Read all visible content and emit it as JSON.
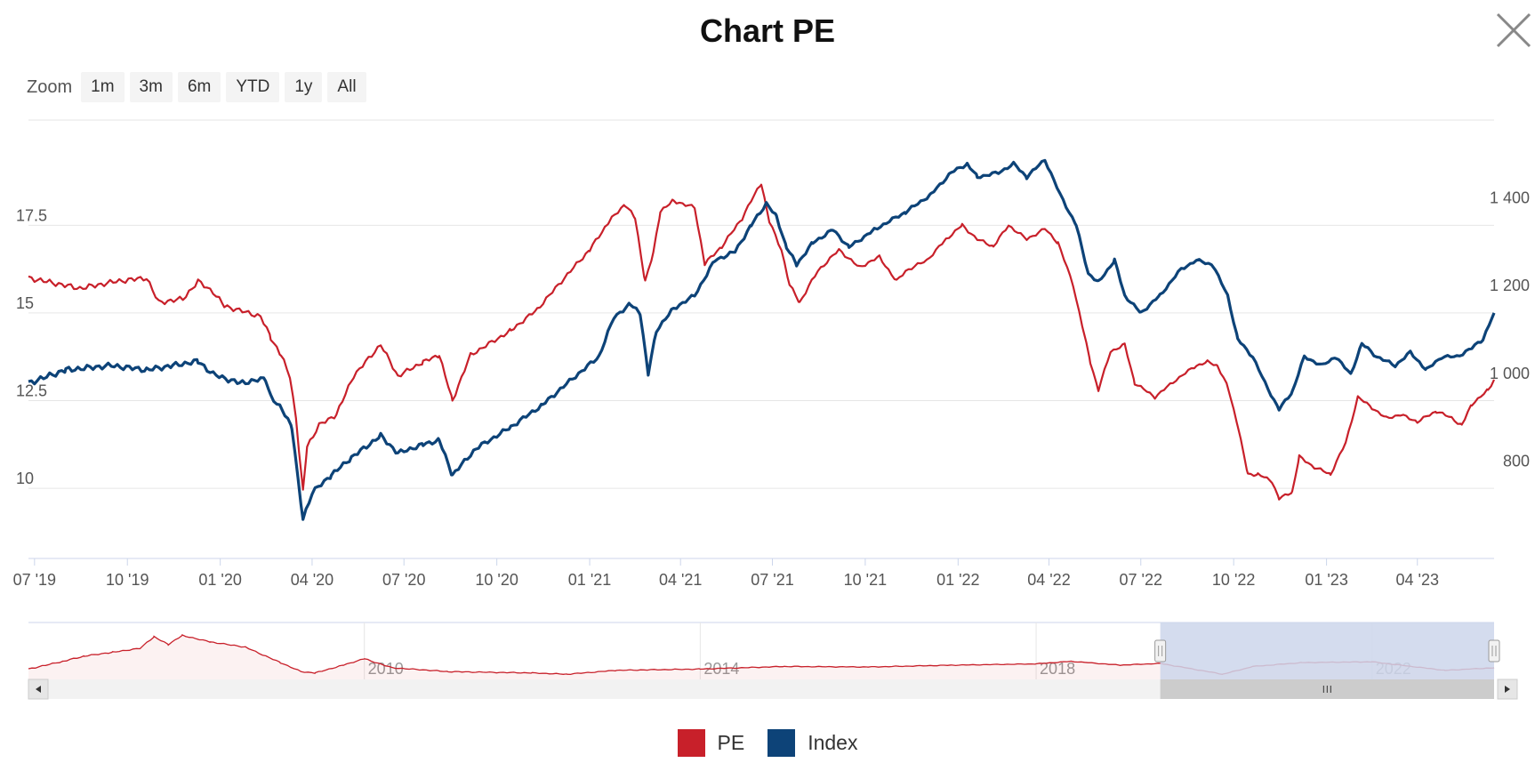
{
  "title": "Chart PE",
  "close_icon": "close-x-icon",
  "zoom": {
    "label": "Zoom",
    "buttons": [
      "1m",
      "3m",
      "6m",
      "YTD",
      "1y",
      "All"
    ]
  },
  "colors": {
    "pe": "#c8202a",
    "index": "#0d4378",
    "grid": "#e6e6e6",
    "navigator_mask": "#ccd6eb"
  },
  "chart_data": {
    "type": "line",
    "x_ticks": [
      "07 '19",
      "10 '19",
      "01 '20",
      "04 '20",
      "07 '20",
      "10 '20",
      "01 '21",
      "04 '21",
      "07 '21",
      "10 '21",
      "01 '22",
      "04 '22",
      "07 '22",
      "10 '22",
      "01 '23",
      "04 '23"
    ],
    "x_range": [
      "2019-06-25",
      "2023-06-16"
    ],
    "y_left": {
      "ticks": [
        "10",
        "12.5",
        "15",
        "17.5"
      ],
      "range": [
        8,
        20.5
      ]
    },
    "y_right": {
      "ticks": [
        "800",
        "1 000",
        "1 200",
        "1 400"
      ],
      "range": [
        600,
        1600
      ]
    },
    "grid": true,
    "legend_placement": "bottom-center",
    "series": [
      {
        "name": "PE",
        "axis": "left",
        "points": [
          [
            "2019-06-25",
            16.0
          ],
          [
            "2019-08-15",
            15.7
          ],
          [
            "2019-09-20",
            15.9
          ],
          [
            "2019-10-20",
            16.0
          ],
          [
            "2019-11-01",
            15.3
          ],
          [
            "2019-11-25",
            15.4
          ],
          [
            "2019-12-10",
            15.9
          ],
          [
            "2019-12-25",
            15.6
          ],
          [
            "2020-01-05",
            15.2
          ],
          [
            "2020-02-10",
            14.9
          ],
          [
            "2020-02-20",
            14.3
          ],
          [
            "2020-03-01",
            13.8
          ],
          [
            "2020-03-10",
            13.2
          ],
          [
            "2020-03-16",
            12.0
          ],
          [
            "2020-03-23",
            9.9
          ],
          [
            "2020-03-27",
            11.2
          ],
          [
            "2020-04-08",
            11.8
          ],
          [
            "2020-04-25",
            12.1
          ],
          [
            "2020-05-12",
            13.2
          ],
          [
            "2020-06-08",
            14.1
          ],
          [
            "2020-06-25",
            13.2
          ],
          [
            "2020-07-20",
            13.6
          ],
          [
            "2020-08-05",
            13.8
          ],
          [
            "2020-08-18",
            12.5
          ],
          [
            "2020-09-05",
            13.8
          ],
          [
            "2020-10-15",
            14.5
          ],
          [
            "2020-11-10",
            15.1
          ],
          [
            "2020-12-10",
            16.1
          ],
          [
            "2021-01-01",
            16.8
          ],
          [
            "2021-01-20",
            17.6
          ],
          [
            "2021-02-05",
            18.1
          ],
          [
            "2021-02-15",
            17.7
          ],
          [
            "2021-02-25",
            15.9
          ],
          [
            "2021-03-05",
            16.7
          ],
          [
            "2021-03-12",
            17.9
          ],
          [
            "2021-03-25",
            18.2
          ],
          [
            "2021-04-15",
            18.0
          ],
          [
            "2021-04-25",
            16.4
          ],
          [
            "2021-05-12",
            16.9
          ],
          [
            "2021-06-01",
            17.7
          ],
          [
            "2021-06-10",
            18.2
          ],
          [
            "2021-06-20",
            18.7
          ],
          [
            "2021-06-28",
            17.6
          ],
          [
            "2021-07-10",
            16.8
          ],
          [
            "2021-07-18",
            15.8
          ],
          [
            "2021-07-28",
            15.3
          ],
          [
            "2021-08-15",
            16.2
          ],
          [
            "2021-09-05",
            16.8
          ],
          [
            "2021-09-25",
            16.3
          ],
          [
            "2021-10-15",
            16.6
          ],
          [
            "2021-11-01",
            15.9
          ],
          [
            "2021-11-10",
            16.2
          ],
          [
            "2021-12-01",
            16.5
          ],
          [
            "2021-12-20",
            17.1
          ],
          [
            "2022-01-05",
            17.5
          ],
          [
            "2022-01-20",
            17.1
          ],
          [
            "2022-02-05",
            16.9
          ],
          [
            "2022-02-20",
            17.5
          ],
          [
            "2022-03-10",
            17.1
          ],
          [
            "2022-03-28",
            17.4
          ],
          [
            "2022-04-10",
            17.0
          ],
          [
            "2022-04-25",
            15.8
          ],
          [
            "2022-05-05",
            14.5
          ],
          [
            "2022-05-12",
            13.6
          ],
          [
            "2022-05-20",
            12.8
          ],
          [
            "2022-06-01",
            13.9
          ],
          [
            "2022-06-15",
            14.1
          ],
          [
            "2022-06-25",
            13.0
          ],
          [
            "2022-07-15",
            12.6
          ],
          [
            "2022-08-05",
            13.1
          ],
          [
            "2022-08-25",
            13.5
          ],
          [
            "2022-09-05",
            13.6
          ],
          [
            "2022-09-15",
            13.5
          ],
          [
            "2022-09-25",
            12.9
          ],
          [
            "2022-10-05",
            11.8
          ],
          [
            "2022-10-15",
            10.4
          ],
          [
            "2022-10-25",
            10.4
          ],
          [
            "2022-11-08",
            10.2
          ],
          [
            "2022-11-15",
            9.7
          ],
          [
            "2022-11-28",
            9.9
          ],
          [
            "2022-12-05",
            10.9
          ],
          [
            "2022-12-20",
            10.6
          ],
          [
            "2023-01-05",
            10.4
          ],
          [
            "2023-01-20",
            11.3
          ],
          [
            "2023-02-01",
            12.6
          ],
          [
            "2023-02-15",
            12.3
          ],
          [
            "2023-03-01",
            12.0
          ],
          [
            "2023-03-15",
            12.1
          ],
          [
            "2023-04-01",
            11.9
          ],
          [
            "2023-04-20",
            12.2
          ],
          [
            "2023-05-05",
            12.0
          ],
          [
            "2023-05-15",
            11.8
          ],
          [
            "2023-05-25",
            12.4
          ],
          [
            "2023-06-10",
            12.8
          ],
          [
            "2023-06-16",
            13.1
          ]
        ]
      },
      {
        "name": "Index",
        "axis": "right",
        "points": [
          [
            "2019-06-25",
            1000
          ],
          [
            "2019-08-01",
            1030
          ],
          [
            "2019-09-15",
            1040
          ],
          [
            "2019-10-20",
            1030
          ],
          [
            "2019-11-15",
            1040
          ],
          [
            "2019-12-10",
            1050
          ],
          [
            "2019-12-25",
            1020
          ],
          [
            "2020-01-20",
            1000
          ],
          [
            "2020-02-15",
            1010
          ],
          [
            "2020-02-20",
            970
          ],
          [
            "2020-03-05",
            930
          ],
          [
            "2020-03-12",
            900
          ],
          [
            "2020-03-18",
            780
          ],
          [
            "2020-03-23",
            690
          ],
          [
            "2020-04-01",
            750
          ],
          [
            "2020-04-20",
            790
          ],
          [
            "2020-05-10",
            830
          ],
          [
            "2020-06-08",
            880
          ],
          [
            "2020-06-25",
            840
          ],
          [
            "2020-07-20",
            860
          ],
          [
            "2020-08-05",
            870
          ],
          [
            "2020-08-18",
            790
          ],
          [
            "2020-09-10",
            850
          ],
          [
            "2020-10-15",
            900
          ],
          [
            "2020-11-15",
            950
          ],
          [
            "2020-12-15",
            1010
          ],
          [
            "2021-01-10",
            1060
          ],
          [
            "2021-01-25",
            1150
          ],
          [
            "2021-02-10",
            1180
          ],
          [
            "2021-02-20",
            1160
          ],
          [
            "2021-02-28",
            1020
          ],
          [
            "2021-03-08",
            1120
          ],
          [
            "2021-03-25",
            1170
          ],
          [
            "2021-04-15",
            1200
          ],
          [
            "2021-05-05",
            1280
          ],
          [
            "2021-05-25",
            1300
          ],
          [
            "2021-06-10",
            1360
          ],
          [
            "2021-06-25",
            1410
          ],
          [
            "2021-07-05",
            1380
          ],
          [
            "2021-07-15",
            1310
          ],
          [
            "2021-07-25",
            1270
          ],
          [
            "2021-08-10",
            1320
          ],
          [
            "2021-08-30",
            1350
          ],
          [
            "2021-09-15",
            1310
          ],
          [
            "2021-10-10",
            1350
          ],
          [
            "2021-11-10",
            1390
          ],
          [
            "2021-12-05",
            1430
          ],
          [
            "2021-12-25",
            1480
          ],
          [
            "2022-01-10",
            1500
          ],
          [
            "2022-01-20",
            1470
          ],
          [
            "2022-02-10",
            1480
          ],
          [
            "2022-02-25",
            1500
          ],
          [
            "2022-03-10",
            1470
          ],
          [
            "2022-03-28",
            1510
          ],
          [
            "2022-04-12",
            1430
          ],
          [
            "2022-04-28",
            1360
          ],
          [
            "2022-05-10",
            1250
          ],
          [
            "2022-05-20",
            1230
          ],
          [
            "2022-06-05",
            1280
          ],
          [
            "2022-06-15",
            1200
          ],
          [
            "2022-07-01",
            1160
          ],
          [
            "2022-07-20",
            1200
          ],
          [
            "2022-08-10",
            1260
          ],
          [
            "2022-08-25",
            1280
          ],
          [
            "2022-09-10",
            1270
          ],
          [
            "2022-09-25",
            1200
          ],
          [
            "2022-10-05",
            1100
          ],
          [
            "2022-10-20",
            1060
          ],
          [
            "2022-11-01",
            1000
          ],
          [
            "2022-11-15",
            940
          ],
          [
            "2022-11-28",
            980
          ],
          [
            "2022-12-10",
            1060
          ],
          [
            "2022-12-28",
            1040
          ],
          [
            "2023-01-10",
            1060
          ],
          [
            "2023-01-25",
            1020
          ],
          [
            "2023-02-05",
            1090
          ],
          [
            "2023-02-20",
            1060
          ],
          [
            "2023-03-10",
            1040
          ],
          [
            "2023-03-25",
            1070
          ],
          [
            "2023-04-10",
            1030
          ],
          [
            "2023-04-25",
            1060
          ],
          [
            "2023-05-10",
            1060
          ],
          [
            "2023-05-25",
            1080
          ],
          [
            "2023-06-05",
            1100
          ],
          [
            "2023-06-16",
            1160
          ]
        ]
      }
    ],
    "navigator": {
      "x_ticks": [
        "2010",
        "2014",
        "2018",
        "2022"
      ],
      "x_range": [
        "2006-01-01",
        "2023-06-16"
      ],
      "y_range": [
        8,
        30
      ],
      "selected_range": [
        "2019-06-25",
        "2023-06-16"
      ],
      "series": {
        "name": "PE",
        "points": [
          [
            "2006-01-01",
            12.0
          ],
          [
            "2006-06-01",
            15.0
          ],
          [
            "2006-09-01",
            17.0
          ],
          [
            "2007-01-01",
            18.5
          ],
          [
            "2007-05-01",
            20.0
          ],
          [
            "2007-07-01",
            24.5
          ],
          [
            "2007-09-01",
            21.5
          ],
          [
            "2007-11-01",
            25.0
          ],
          [
            "2008-03-01",
            22.5
          ],
          [
            "2008-08-01",
            20.5
          ],
          [
            "2009-01-01",
            14.5
          ],
          [
            "2009-04-01",
            11.0
          ],
          [
            "2009-06-01",
            10.5
          ],
          [
            "2009-10-01",
            13.5
          ],
          [
            "2010-01-01",
            16.0
          ],
          [
            "2010-05-01",
            12.5
          ],
          [
            "2011-01-01",
            11.0
          ],
          [
            "2012-01-01",
            10.5
          ],
          [
            "2012-06-01",
            10.0
          ],
          [
            "2013-01-01",
            11.5
          ],
          [
            "2014-01-01",
            12.0
          ],
          [
            "2015-01-01",
            13.0
          ],
          [
            "2016-01-01",
            12.8
          ],
          [
            "2017-01-01",
            13.5
          ],
          [
            "2018-01-01",
            14.0
          ],
          [
            "2018-06-01",
            15.0
          ],
          [
            "2019-01-01",
            13.5
          ],
          [
            "2019-06-25",
            14.2
          ],
          [
            "2020-03-23",
            10.0
          ],
          [
            "2020-08-01",
            13.0
          ],
          [
            "2021-03-01",
            14.5
          ],
          [
            "2022-01-01",
            14.8
          ],
          [
            "2022-11-15",
            11.5
          ],
          [
            "2023-06-16",
            12.5
          ]
        ]
      }
    }
  },
  "legend": {
    "pe_label": "PE",
    "index_label": "Index"
  }
}
